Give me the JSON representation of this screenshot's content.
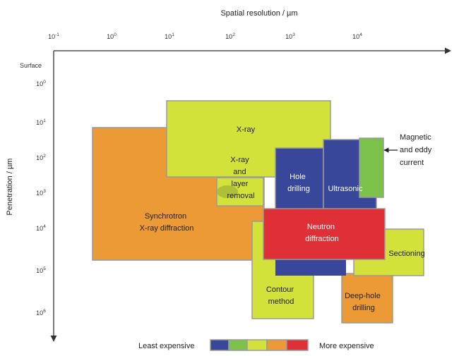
{
  "axes": {
    "x_title": "Spatial resolution / µm",
    "y_title": "Penetration / µm",
    "surface_label": "Surface",
    "x_ticks": [
      {
        "base": "10",
        "exp": "-1"
      },
      {
        "base": "10",
        "exp": "0"
      },
      {
        "base": "10",
        "exp": "1"
      },
      {
        "base": "10",
        "exp": "2"
      },
      {
        "base": "10",
        "exp": "3"
      },
      {
        "base": "10",
        "exp": "4"
      }
    ],
    "y_ticks": [
      {
        "base": "10",
        "exp": "0"
      },
      {
        "base": "10",
        "exp": "1"
      },
      {
        "base": "10",
        "exp": "2"
      },
      {
        "base": "10",
        "exp": "3"
      },
      {
        "base": "10",
        "exp": "4"
      },
      {
        "base": "10",
        "exp": "5"
      },
      {
        "base": "10",
        "exp": "6"
      }
    ]
  },
  "regions": {
    "synchrotron": {
      "line1": "Synchrotron",
      "line2": "X-ray diffraction"
    },
    "xray": {
      "label": "X-ray"
    },
    "xray_removal": {
      "line1": "X-ray",
      "line2": "and",
      "line3": "layer",
      "line4": "removal"
    },
    "hole_drilling": {
      "line1": "Hole",
      "line2": "drilling"
    },
    "ultrasonic": {
      "label": "Ultrasonic"
    },
    "magnetic": {
      "line1": "Magnetic",
      "line2": "and eddy",
      "line3": "current"
    },
    "neutron": {
      "line1": "Neutron",
      "line2": "diffraction"
    },
    "sectioning": {
      "label": "Sectioning"
    },
    "contour": {
      "line1": "Contour",
      "line2": "method"
    },
    "deep_hole": {
      "line1": "Deep-hole",
      "line2": "drilling"
    }
  },
  "legend": {
    "least": "Least expensive",
    "more": "More expensive",
    "swatches": [
      "#38479a",
      "#7cc24a",
      "#d2e23a",
      "#ec9a36",
      "#e03037"
    ]
  },
  "colors": {
    "blue": "#38479a",
    "green": "#7cc24a",
    "yellow_green": "#d2e23a",
    "orange": "#ec9a36",
    "red": "#e03037"
  }
}
